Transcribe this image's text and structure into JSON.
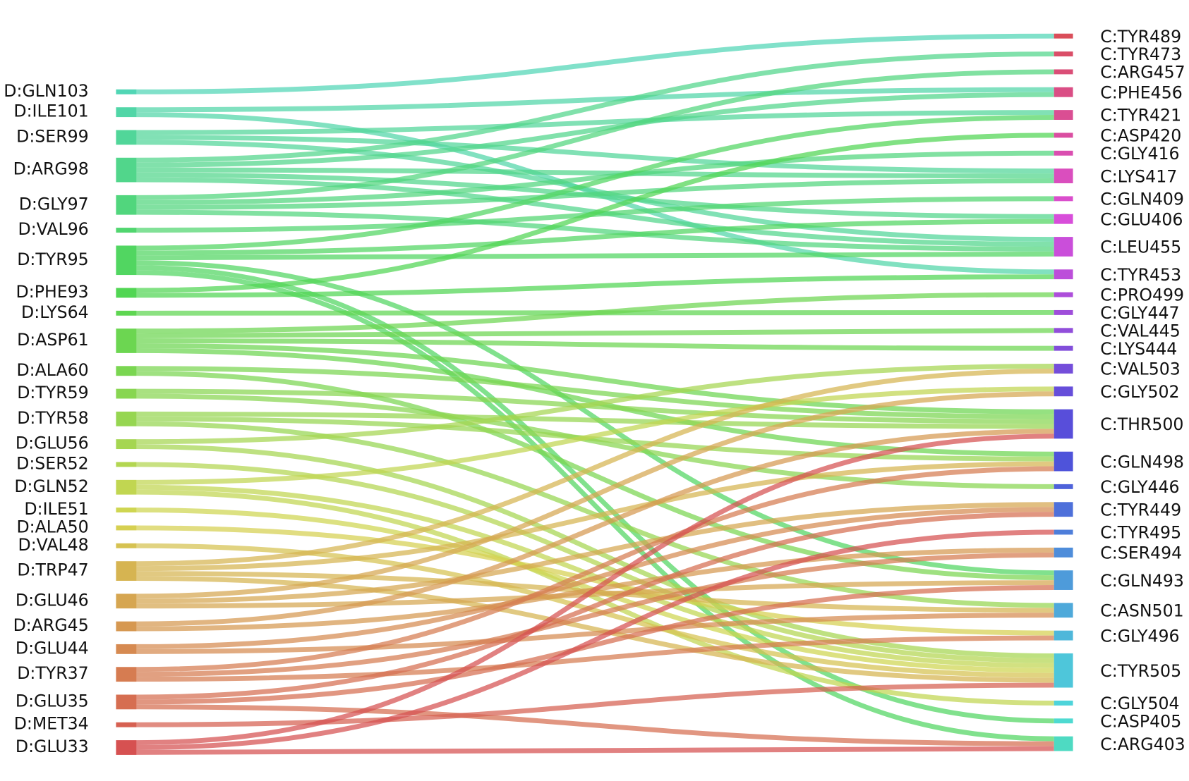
{
  "left_nodes": [
    {
      "label": "D:GLN103"
    },
    {
      "label": "D:ILE101"
    },
    {
      "label": "D:SER99"
    },
    {
      "label": "D:ARG98"
    },
    {
      "label": "D:GLY97"
    },
    {
      "label": "D:VAL96"
    },
    {
      "label": "D:TYR95"
    },
    {
      "label": "D:PHE93"
    },
    {
      "label": "D:LYS64"
    },
    {
      "label": "D:ASP61"
    },
    {
      "label": "D:ALA60"
    },
    {
      "label": "D:TYR59"
    },
    {
      "label": "D:TYR58"
    },
    {
      "label": "D:GLU56"
    },
    {
      "label": "D:SER52"
    },
    {
      "label": "D:GLN52"
    },
    {
      "label": "D:ILE51"
    },
    {
      "label": "D:ALA50"
    },
    {
      "label": "D:VAL48"
    },
    {
      "label": "D:TRP47"
    },
    {
      "label": "D:GLU46"
    },
    {
      "label": "D:ARG45"
    },
    {
      "label": "D:GLU44"
    },
    {
      "label": "D:TYR37"
    },
    {
      "label": "D:GLU35"
    },
    {
      "label": "D:MET34"
    },
    {
      "label": "D:GLU33"
    }
  ],
  "right_nodes": [
    {
      "label": "C:TYR489"
    },
    {
      "label": "C:TYR473"
    },
    {
      "label": "C:ARG457"
    },
    {
      "label": "C:PHE456"
    },
    {
      "label": "C:TYR421"
    },
    {
      "label": "C:ASP420"
    },
    {
      "label": "C:GLY416"
    },
    {
      "label": "C:LYS417"
    },
    {
      "label": "C:GLN409"
    },
    {
      "label": "C:GLU406"
    },
    {
      "label": "C:LEU455"
    },
    {
      "label": "C:TYR453"
    },
    {
      "label": "C:PRO499"
    },
    {
      "label": "C:GLY447"
    },
    {
      "label": "C:VAL445"
    },
    {
      "label": "C:LYS444"
    },
    {
      "label": "C:VAL503"
    },
    {
      "label": "C:GLY502"
    },
    {
      "label": "C:THR500"
    },
    {
      "label": "C:GLN498"
    },
    {
      "label": "C:GLY446"
    },
    {
      "label": "C:TYR449"
    },
    {
      "label": "C:TYR495"
    },
    {
      "label": "C:SER494"
    },
    {
      "label": "C:GLN493"
    },
    {
      "label": "C:ASN501"
    },
    {
      "label": "C:GLY496"
    },
    {
      "label": "C:TYR505"
    },
    {
      "label": "C:GLY504"
    },
    {
      "label": "C:ASP405"
    },
    {
      "label": "C:ARG403"
    }
  ],
  "links": [
    {
      "source": 0,
      "target": 0,
      "value": 1
    },
    {
      "source": 1,
      "target": 3,
      "value": 1
    },
    {
      "source": 1,
      "target": 11,
      "value": 1
    },
    {
      "source": 2,
      "target": 4,
      "value": 1
    },
    {
      "source": 2,
      "target": 10,
      "value": 1
    },
    {
      "source": 2,
      "target": 7,
      "value": 1
    },
    {
      "source": 3,
      "target": 1,
      "value": 1
    },
    {
      "source": 3,
      "target": 3,
      "value": 1
    },
    {
      "source": 3,
      "target": 7,
      "value": 1
    },
    {
      "source": 3,
      "target": 9,
      "value": 1
    },
    {
      "source": 3,
      "target": 10,
      "value": 1
    },
    {
      "source": 4,
      "target": 2,
      "value": 1
    },
    {
      "source": 4,
      "target": 6,
      "value": 1
    },
    {
      "source": 4,
      "target": 7,
      "value": 1
    },
    {
      "source": 4,
      "target": 10,
      "value": 1
    },
    {
      "source": 5,
      "target": 8,
      "value": 1
    },
    {
      "source": 6,
      "target": 4,
      "value": 1
    },
    {
      "source": 6,
      "target": 9,
      "value": 1
    },
    {
      "source": 6,
      "target": 10,
      "value": 1
    },
    {
      "source": 6,
      "target": 24,
      "value": 1
    },
    {
      "source": 6,
      "target": 29,
      "value": 1
    },
    {
      "source": 6,
      "target": 30,
      "value": 1
    },
    {
      "source": 7,
      "target": 5,
      "value": 1
    },
    {
      "source": 7,
      "target": 11,
      "value": 1
    },
    {
      "source": 8,
      "target": 13,
      "value": 1
    },
    {
      "source": 9,
      "target": 12,
      "value": 1
    },
    {
      "source": 9,
      "target": 14,
      "value": 1
    },
    {
      "source": 9,
      "target": 15,
      "value": 1
    },
    {
      "source": 9,
      "target": 18,
      "value": 1
    },
    {
      "source": 9,
      "target": 19,
      "value": 1
    },
    {
      "source": 10,
      "target": 18,
      "value": 1
    },
    {
      "source": 10,
      "target": 24,
      "value": 1
    },
    {
      "source": 11,
      "target": 18,
      "value": 1
    },
    {
      "source": 11,
      "target": 20,
      "value": 1
    },
    {
      "source": 12,
      "target": 18,
      "value": 1
    },
    {
      "source": 12,
      "target": 19,
      "value": 1
    },
    {
      "source": 12,
      "target": 25,
      "value": 1
    },
    {
      "source": 13,
      "target": 16,
      "value": 1
    },
    {
      "source": 13,
      "target": 27,
      "value": 1
    },
    {
      "source": 14,
      "target": 27,
      "value": 1
    },
    {
      "source": 15,
      "target": 17,
      "value": 1
    },
    {
      "source": 15,
      "target": 27,
      "value": 1
    },
    {
      "source": 15,
      "target": 28,
      "value": 1
    },
    {
      "source": 16,
      "target": 27,
      "value": 1
    },
    {
      "source": 17,
      "target": 26,
      "value": 1
    },
    {
      "source": 18,
      "target": 27,
      "value": 1
    },
    {
      "source": 19,
      "target": 16,
      "value": 1
    },
    {
      "source": 19,
      "target": 19,
      "value": 1
    },
    {
      "source": 19,
      "target": 25,
      "value": 1
    },
    {
      "source": 19,
      "target": 27,
      "value": 1
    },
    {
      "source": 20,
      "target": 17,
      "value": 1
    },
    {
      "source": 20,
      "target": 21,
      "value": 1
    },
    {
      "source": 20,
      "target": 24,
      "value": 1
    },
    {
      "source": 21,
      "target": 18,
      "value": 1
    },
    {
      "source": 21,
      "target": 23,
      "value": 1
    },
    {
      "source": 22,
      "target": 21,
      "value": 1
    },
    {
      "source": 22,
      "target": 25,
      "value": 1
    },
    {
      "source": 23,
      "target": 19,
      "value": 1
    },
    {
      "source": 23,
      "target": 23,
      "value": 1
    },
    {
      "source": 23,
      "target": 26,
      "value": 1
    },
    {
      "source": 24,
      "target": 21,
      "value": 1
    },
    {
      "source": 24,
      "target": 24,
      "value": 1
    },
    {
      "source": 24,
      "target": 30,
      "value": 1
    },
    {
      "source": 25,
      "target": 27,
      "value": 1
    },
    {
      "source": 26,
      "target": 18,
      "value": 1
    },
    {
      "source": 26,
      "target": 30,
      "value": 1
    },
    {
      "source": 26,
      "target": 22,
      "value": 1
    }
  ]
}
